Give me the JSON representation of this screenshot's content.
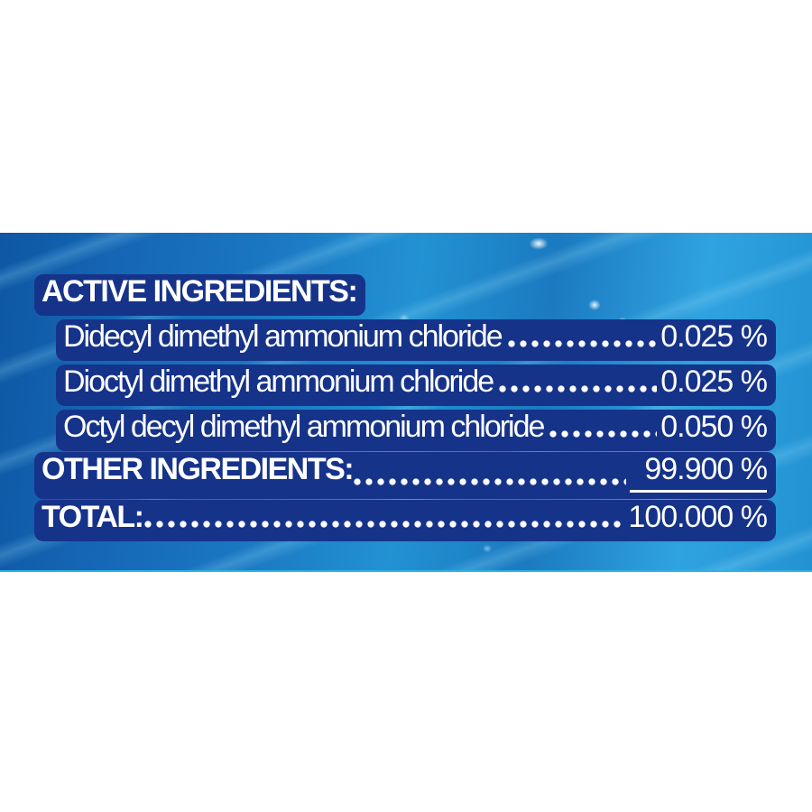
{
  "panel": {
    "heading": "ACTIVE INGREDIENTS:",
    "ingredients": [
      {
        "name": "Didecyl dimethyl ammonium chloride",
        "value": "0.025 %"
      },
      {
        "name": "Dioctyl dimethyl ammonium chloride",
        "value": "0.025 %"
      },
      {
        "name": "Octyl decyl dimethyl ammonium chloride",
        "value": "0.050 %"
      }
    ],
    "other": {
      "label": "OTHER INGREDIENTS:",
      "value": "99.900 %"
    },
    "total": {
      "label": "TOTAL:",
      "value": "100.000 %"
    },
    "colors": {
      "text": "#ffffff",
      "text_outline_navy": "#16338a",
      "band_blue_dark": "#0e57a4",
      "band_blue_bright": "#2fa3e0",
      "page_background": "#ffffff"
    }
  }
}
